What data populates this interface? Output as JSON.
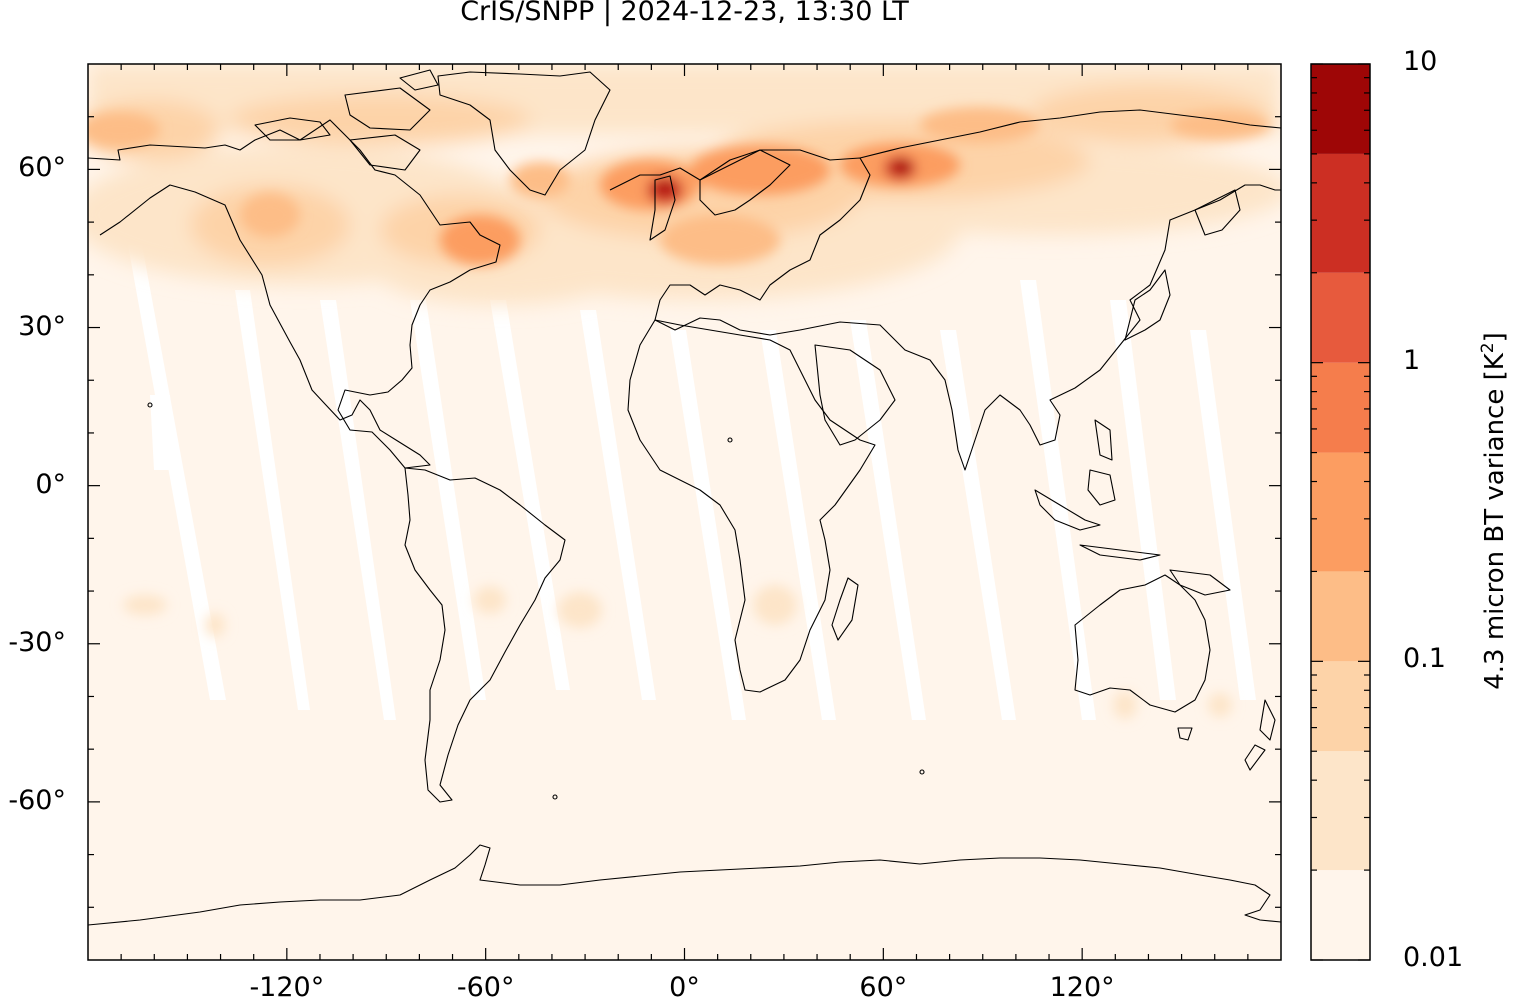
{
  "title": "CrIS/SNPP | 2024-12-23, 13:30 LT",
  "map": {
    "projection": "equirectangular",
    "lon_range": [
      -180,
      180
    ],
    "lat_range": [
      -90,
      80
    ],
    "lat_ticks": [
      {
        "value": 60,
        "label": "60°"
      },
      {
        "value": 30,
        "label": "30°"
      },
      {
        "value": 0,
        "label": "0°"
      },
      {
        "value": -30,
        "label": "-30°"
      },
      {
        "value": -60,
        "label": "-60°"
      }
    ],
    "lon_ticks": [
      {
        "value": -120,
        "label": "-120°"
      },
      {
        "value": -60,
        "label": "-60°"
      },
      {
        "value": 0,
        "label": "0°"
      },
      {
        "value": 60,
        "label": "60°"
      },
      {
        "value": 120,
        "label": "120°"
      }
    ],
    "background_color": "#fff5eb",
    "coastline_color": "#000000"
  },
  "colorbar": {
    "label": "4.3 micron BT variance [K",
    "label_sup": "2",
    "label_close": "]",
    "scale": "log",
    "range": [
      0.01,
      10
    ],
    "tick_labels": [
      {
        "value": 10,
        "label": "10"
      },
      {
        "value": 1,
        "label": "1"
      },
      {
        "value": 0.1,
        "label": "0.1"
      },
      {
        "value": 0.01,
        "label": "0.01"
      }
    ],
    "levels": [
      0.01,
      0.02,
      0.05,
      0.1,
      0.2,
      0.5,
      1,
      2,
      5,
      10
    ],
    "colors": [
      "#fff5eb",
      "#fde5c9",
      "#fdd3a8",
      "#fdbd87",
      "#fc9d61",
      "#f57d4c",
      "#e75a3d",
      "#cc2f23",
      "#9e0606"
    ]
  }
}
